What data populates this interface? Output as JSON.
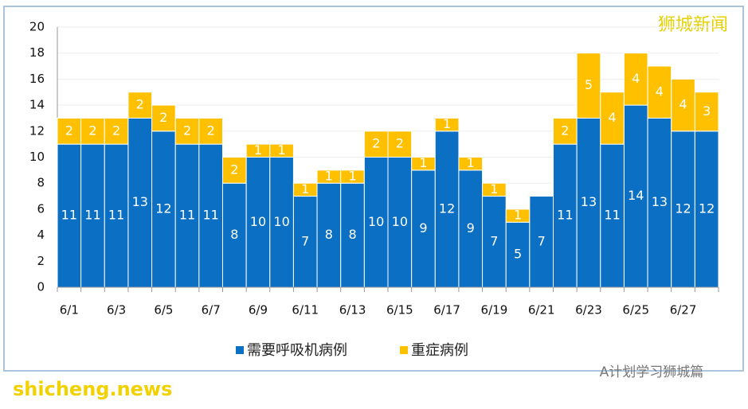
{
  "chart_data": {
    "type": "bar",
    "stacked": true,
    "categories": [
      "6/1",
      null,
      "6/3",
      null,
      "6/5",
      null,
      "6/7",
      null,
      "6/9",
      null,
      "6/11",
      null,
      "6/13",
      null,
      "6/15",
      null,
      "6/17",
      null,
      "6/19",
      null,
      "6/21",
      null,
      "6/23",
      null,
      "6/25",
      null,
      "6/27",
      null
    ],
    "series": [
      {
        "name": "需要呼吸机病例",
        "color": "#0b6fc3",
        "values": [
          11,
          11,
          11,
          13,
          12,
          11,
          11,
          8,
          10,
          10,
          7,
          8,
          8,
          10,
          10,
          9,
          12,
          9,
          7,
          5,
          7,
          11,
          13,
          11,
          14,
          13,
          12,
          12
        ]
      },
      {
        "name": "重症病例",
        "color": "#ffc000",
        "values": [
          2,
          2,
          2,
          2,
          2,
          2,
          2,
          2,
          1,
          1,
          1,
          1,
          1,
          2,
          2,
          1,
          1,
          1,
          1,
          1,
          null,
          2,
          5,
          4,
          4,
          4,
          4,
          3
        ]
      }
    ],
    "ylim": [
      0,
      20
    ],
    "yticks": [
      0,
      2,
      4,
      6,
      8,
      10,
      12,
      14,
      16,
      18,
      20
    ],
    "grid": true,
    "legend": "bottom"
  },
  "watermarks": [
    "狮城新闻",
    "A计划学习狮城篇",
    "shicheng.news"
  ]
}
